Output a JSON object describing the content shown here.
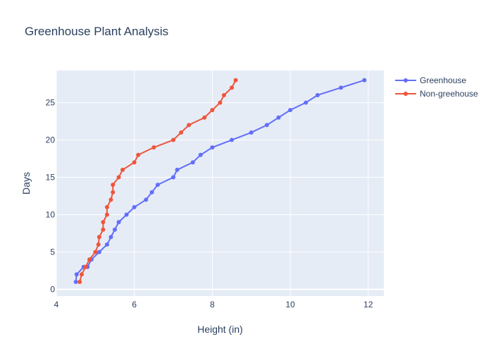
{
  "chart_data": {
    "type": "line",
    "title": "Greenhouse Plant Analysis",
    "xlabel": "Height (in)",
    "ylabel": "Days",
    "xlim": [
      4,
      12.4
    ],
    "ylim": [
      -0.9,
      29.3
    ],
    "xticks": [
      4,
      6,
      8,
      10,
      12
    ],
    "yticks": [
      0,
      5,
      10,
      15,
      20,
      25
    ],
    "grid": true,
    "legend_position": "top-right",
    "series": [
      {
        "name": "Greenhouse",
        "color": "#636efa",
        "x": [
          4.5,
          4.52,
          4.7,
          4.8,
          4.9,
          5.1,
          5.3,
          5.4,
          5.5,
          5.6,
          5.8,
          6.0,
          6.3,
          6.45,
          6.6,
          7.0,
          7.1,
          7.5,
          7.7,
          8.0,
          8.5,
          9.0,
          9.4,
          9.7,
          10.0,
          10.4,
          10.7,
          11.3,
          11.9
        ],
        "y": [
          1,
          2,
          3,
          3,
          4,
          5,
          6,
          7,
          8,
          9,
          10,
          11,
          12,
          13,
          14,
          15,
          16,
          17,
          18,
          19,
          20,
          21,
          22,
          23,
          24,
          25,
          26,
          27,
          28
        ]
      },
      {
        "name": "Non-greehouse",
        "color": "#ef553b",
        "x": [
          4.6,
          4.65,
          4.75,
          4.85,
          5.0,
          5.08,
          5.1,
          5.2,
          5.2,
          5.3,
          5.3,
          5.4,
          5.45,
          5.45,
          5.6,
          5.7,
          6.0,
          6.1,
          6.5,
          7.0,
          7.2,
          7.4,
          7.8,
          8.0,
          8.2,
          8.3,
          8.5,
          8.6
        ],
        "y": [
          1,
          2,
          3,
          4,
          5,
          6,
          7,
          8,
          9,
          10,
          11,
          12,
          13,
          14,
          15,
          16,
          17,
          18,
          19,
          20,
          21,
          22,
          23,
          24,
          25,
          26,
          27,
          28
        ]
      }
    ]
  }
}
